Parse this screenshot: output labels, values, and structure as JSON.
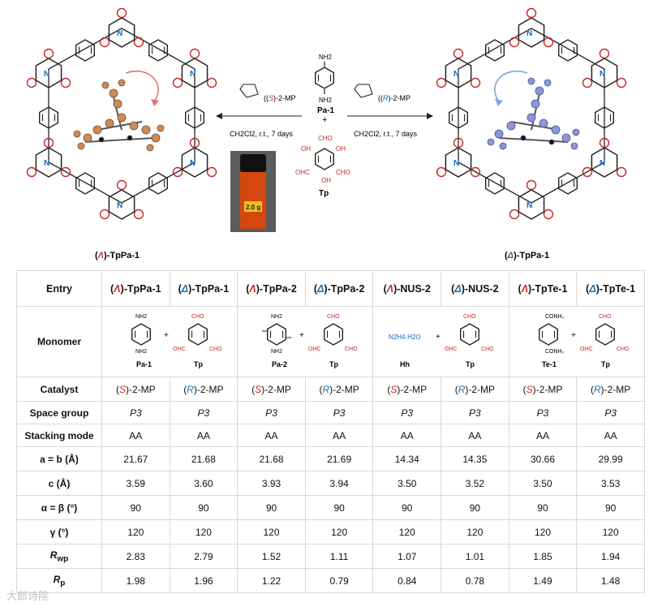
{
  "scheme": {
    "left_product": "TpPa-1",
    "left_prefix_sym": "Λ",
    "right_product": "TpPa-1",
    "right_prefix_sym": "Δ",
    "monomer_top": "Pa-1",
    "monomer_bottom": "Tp",
    "plus": "+",
    "left_catalyst_pre": "(",
    "left_catalyst_S": "S",
    "left_catalyst_post": ")-2-MP",
    "right_catalyst_R": "R",
    "conditions": "CH2Cl2, r.t., 7 days",
    "vial_label": "2.0 g",
    "nh2": "NH2",
    "cho": "CHO",
    "oh": "OH",
    "ohc": "OHC"
  },
  "table": {
    "row_labels": [
      "Entry",
      "Monomer",
      "Catalyst",
      "Space group",
      "Stacking mode",
      "a = b (Å)",
      "c (Å)",
      "α = β (°)",
      "γ (°)",
      "Rwp",
      "Rp"
    ],
    "entries": [
      {
        "sym": "Λ",
        "name": "TpPa-1",
        "color": "red"
      },
      {
        "sym": "Δ",
        "name": "TpPa-1",
        "color": "blue"
      },
      {
        "sym": "Λ",
        "name": "TpPa-2",
        "color": "red"
      },
      {
        "sym": "Δ",
        "name": "TpPa-2",
        "color": "blue"
      },
      {
        "sym": "Λ",
        "name": "NUS-2",
        "color": "red"
      },
      {
        "sym": "Δ",
        "name": "NUS-2",
        "color": "blue"
      },
      {
        "sym": "Λ",
        "name": "TpTe-1",
        "color": "red"
      },
      {
        "sym": "Δ",
        "name": "TpTe-1",
        "color": "blue"
      }
    ],
    "monomer_names": [
      "Pa-1",
      "Tp",
      "Pa-2",
      "Tp",
      "Hh",
      "Tp",
      "Te-1",
      "Tp"
    ],
    "hydrazine": "N2H4·H2O",
    "catalyst": [
      {
        "letter": "S",
        "rest": "-2-MP",
        "color": "red"
      },
      {
        "letter": "R",
        "rest": "-2-MP",
        "color": "blue"
      },
      {
        "letter": "S",
        "rest": "-2-MP",
        "color": "red"
      },
      {
        "letter": "R",
        "rest": "-2-MP",
        "color": "blue"
      },
      {
        "letter": "S",
        "rest": "-2-MP",
        "color": "red"
      },
      {
        "letter": "R",
        "rest": "-2-MP",
        "color": "blue"
      },
      {
        "letter": "S",
        "rest": "-2-MP",
        "color": "red"
      },
      {
        "letter": "R",
        "rest": "-2-MP",
        "color": "blue"
      }
    ],
    "space_group": "P3",
    "stacking": "AA",
    "a_b": [
      "21.67",
      "21.68",
      "21.68",
      "21.69",
      "14.34",
      "14.35",
      "30.66",
      "29.99"
    ],
    "c": [
      "3.59",
      "3.60",
      "3.93",
      "3.94",
      "3.50",
      "3.52",
      "3.50",
      "3.53"
    ],
    "alpha_beta": [
      "90",
      "90",
      "90",
      "90",
      "90",
      "90",
      "90",
      "90"
    ],
    "gamma": [
      "120",
      "120",
      "120",
      "120",
      "120",
      "120",
      "120",
      "120"
    ],
    "rwp": [
      "2.83",
      "2.79",
      "1.52",
      "1.11",
      "1.07",
      "1.01",
      "1.85",
      "1.94"
    ],
    "rp": [
      "1.98",
      "1.96",
      "1.22",
      "0.79",
      "0.84",
      "0.78",
      "1.49",
      "1.48"
    ]
  },
  "watermark": "大郎诗院"
}
